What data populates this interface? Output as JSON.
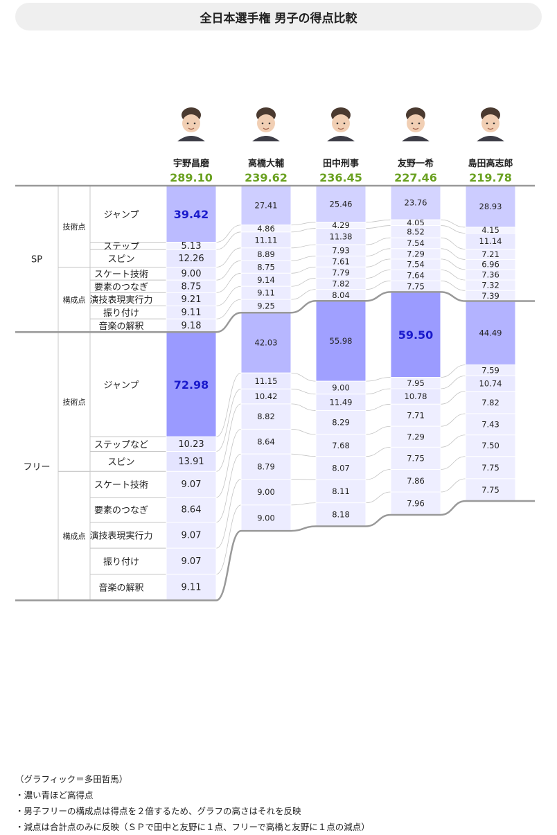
{
  "title": "全日本選手権 男子の得点比較",
  "chart_data": {
    "type": "table",
    "title": "全日本選手権 男子の得点比較",
    "skaters": [
      {
        "name": "宇野昌磨",
        "total": "289.10",
        "avatar_icon": "skater-portrait-icon"
      },
      {
        "name": "高橋大輔",
        "total": "239.62",
        "avatar_icon": "skater-portrait-icon"
      },
      {
        "name": "田中刑事",
        "total": "236.45",
        "avatar_icon": "skater-portrait-icon"
      },
      {
        "name": "友野一希",
        "total": "227.46",
        "avatar_icon": "skater-portrait-icon"
      },
      {
        "name": "島田高志郎",
        "total": "219.78",
        "avatar_icon": "skater-portrait-icon"
      }
    ],
    "rows": [
      {
        "segment": "SP",
        "group": "技術点",
        "label": "ジャンプ"
      },
      {
        "segment": "SP",
        "group": "技術点",
        "label": "ステップ"
      },
      {
        "segment": "SP",
        "group": "技術点",
        "label": "スピン"
      },
      {
        "segment": "SP",
        "group": "構成点",
        "label": "スケート技術"
      },
      {
        "segment": "SP",
        "group": "構成点",
        "label": "要素のつなぎ"
      },
      {
        "segment": "SP",
        "group": "構成点",
        "label": "演技表現実行力"
      },
      {
        "segment": "SP",
        "group": "構成点",
        "label": "振り付け"
      },
      {
        "segment": "SP",
        "group": "構成点",
        "label": "音楽の解釈"
      },
      {
        "segment": "フリー",
        "group": "技術点",
        "label": "ジャンプ"
      },
      {
        "segment": "フリー",
        "group": "技術点",
        "label": "ステップなど"
      },
      {
        "segment": "フリー",
        "group": "技術点",
        "label": "スピン"
      },
      {
        "segment": "フリー",
        "group": "構成点",
        "label": "スケート技術"
      },
      {
        "segment": "フリー",
        "group": "構成点",
        "label": "要素のつなぎ"
      },
      {
        "segment": "フリー",
        "group": "構成点",
        "label": "演技表現実行力"
      },
      {
        "segment": "フリー",
        "group": "構成点",
        "label": "振り付け"
      },
      {
        "segment": "フリー",
        "group": "構成点",
        "label": "音楽の解釈"
      }
    ],
    "columns": [
      {
        "skater": "宇野昌磨",
        "values": [
          "39.42",
          "5.13",
          "12.26",
          "9.00",
          "8.75",
          "9.21",
          "9.11",
          "9.18",
          "72.98",
          "10.23",
          "13.91",
          "9.07",
          "8.64",
          "9.07",
          "9.07",
          "9.11"
        ]
      },
      {
        "skater": "高橋大輔",
        "values": [
          "27.41",
          "4.86",
          "11.11",
          "8.89",
          "8.75",
          "9.14",
          "9.11",
          "9.25",
          "42.03",
          "11.15",
          "10.42",
          "8.82",
          "8.64",
          "8.79",
          "9.00",
          "9.00"
        ]
      },
      {
        "skater": "田中刑事",
        "values": [
          "25.46",
          "4.29",
          "11.38",
          "7.93",
          "7.61",
          "7.79",
          "7.82",
          "8.04",
          "55.98",
          "9.00",
          "11.49",
          "8.29",
          "7.68",
          "8.07",
          "8.11",
          "8.18"
        ]
      },
      {
        "skater": "友野一希",
        "values": [
          "23.76",
          "4.05",
          "8.52",
          "7.54",
          "7.29",
          "7.54",
          "7.64",
          "7.75",
          "59.50",
          "7.95",
          "10.78",
          "7.71",
          "7.29",
          "7.75",
          "7.86",
          "7.96"
        ]
      },
      {
        "skater": "島田高志郎",
        "values": [
          "28.93",
          "4.15",
          "11.14",
          "7.21",
          "6.96",
          "7.36",
          "7.32",
          "7.39",
          "44.49",
          "7.59",
          "10.74",
          "7.82",
          "7.43",
          "7.50",
          "7.75",
          "7.75"
        ]
      }
    ],
    "highlights": [
      {
        "skater": "宇野昌磨",
        "row": 0
      },
      {
        "skater": "宇野昌磨",
        "row": 8
      },
      {
        "skater": "友野一希",
        "row": 8
      }
    ],
    "colors": {
      "total": "#6aa121",
      "highlight_text": "#1a1acc",
      "divider": "#999999"
    }
  },
  "notes": [
    "（グラフィック＝多田哲馬）",
    "・濃い青ほど高得点",
    "・男子フリーの構成点は得点を２倍するため、グラフの高さはそれを反映",
    "・減点は合計点のみに反映（ＳＰで田中と友野に１点、フリーで高橋と友野に１点の減点）"
  ]
}
